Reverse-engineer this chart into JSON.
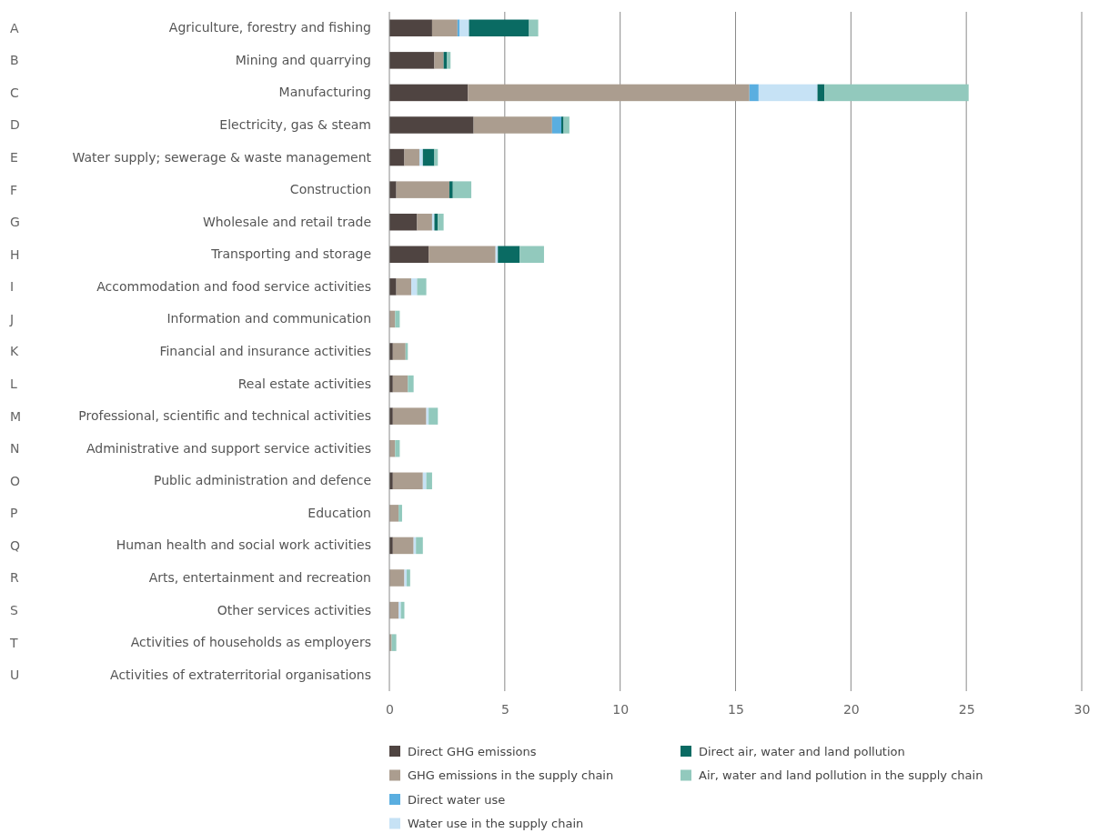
{
  "chart_data": {
    "type": "bar",
    "orientation": "horizontal",
    "stacked": true,
    "categories": [
      "Agriculture, forestry and fishing",
      "Mining and quarrying",
      "Manufacturing",
      "Electricity, gas & steam",
      "Water supply; sewerage & waste management",
      "Construction",
      "Wholesale and retail trade",
      "Transporting and storage",
      "Accommodation and food service activities",
      "Information and communication",
      "Financial and insurance activities",
      "Real estate activities",
      "Professional, scientific and technical activities",
      "Administrative and support service activities",
      "Public administration and defence",
      "Education",
      "Human health and social work activities",
      "Arts, entertainment and recreation",
      "Other services activities",
      "Activities of households as employers",
      "Activities of extraterritorial organisations"
    ],
    "series": [
      {
        "name": "Direct GHG emissions",
        "color": "#4f4441",
        "values": [
          1.85,
          1.95,
          3.4,
          3.65,
          0.65,
          0.3,
          1.2,
          1.7,
          0.3,
          0,
          0.15,
          0.15,
          0.15,
          0,
          0.15,
          0,
          0.15,
          0,
          0,
          0,
          0
        ]
      },
      {
        "name": "GHG emissions in the supply chain",
        "color": "#ab9d8f",
        "values": [
          1.1,
          0.4,
          12.2,
          3.4,
          0.65,
          2.3,
          0.65,
          2.9,
          0.65,
          0.25,
          0.55,
          0.65,
          1.45,
          0.25,
          1.3,
          0.4,
          0.9,
          0.65,
          0.4,
          0.1,
          0
        ]
      },
      {
        "name": "Direct water use",
        "color": "#5aaee0",
        "values": [
          0.1,
          0,
          0.4,
          0.4,
          0,
          0,
          0,
          0,
          0,
          0,
          0,
          0,
          0,
          0,
          0,
          0,
          0,
          0,
          0,
          0,
          0
        ]
      },
      {
        "name": "Water use in the supply chain",
        "color": "#c6e2f5",
        "values": [
          0.4,
          0,
          2.55,
          0,
          0.15,
          0,
          0.1,
          0.1,
          0.25,
          0,
          0,
          0,
          0.1,
          0,
          0.15,
          0,
          0.1,
          0.1,
          0.1,
          0,
          0
        ]
      },
      {
        "name": "Direct air, water and land pollution",
        "color": "#0a6b63",
        "values": [
          2.6,
          0.15,
          0.3,
          0.1,
          0.5,
          0.15,
          0.15,
          0.95,
          0,
          0,
          0,
          0,
          0,
          0,
          0,
          0,
          0,
          0,
          0,
          0,
          0
        ]
      },
      {
        "name": "Air, water and land pollution in the supply chain",
        "color": "#92c9bd",
        "values": [
          0.4,
          0.15,
          6.25,
          0.25,
          0.15,
          0.8,
          0.25,
          1.05,
          0.4,
          0.2,
          0.1,
          0.25,
          0.4,
          0.2,
          0.25,
          0.15,
          0.3,
          0.15,
          0.15,
          0.2,
          0
        ]
      }
    ],
    "annotations": [
      "A",
      "B",
      "C",
      "D",
      "E",
      "F",
      "G",
      "H",
      "I",
      "J",
      "K",
      "L",
      "M",
      "N",
      "O",
      "P",
      "Q",
      "R",
      "S",
      "T",
      "U"
    ],
    "xlim": [
      0,
      30
    ],
    "xticks": [
      0,
      5,
      10,
      15,
      20,
      25,
      30
    ],
    "grid": "x",
    "legend": "bottom"
  }
}
